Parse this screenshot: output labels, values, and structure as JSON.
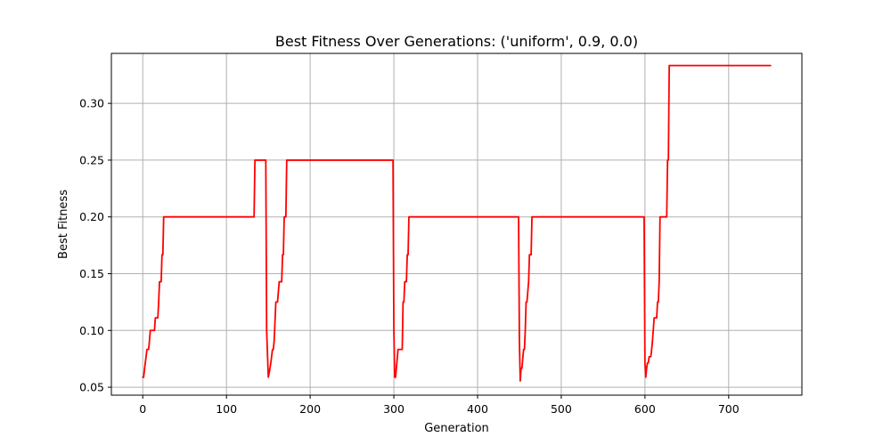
{
  "chart_data": {
    "type": "line",
    "title": "Best Fitness Over Generations: ('uniform', 0.9, 0.0)",
    "xlabel": "Generation",
    "ylabel": "Best Fitness",
    "xlim": [
      -37.5,
      787.5
    ],
    "ylim": [
      0.043,
      0.344
    ],
    "xticks": [
      0,
      100,
      200,
      300,
      400,
      500,
      600,
      700
    ],
    "yticks": [
      0.05,
      0.1,
      0.15,
      0.2,
      0.25,
      0.3
    ],
    "ytick_labels": [
      "0.05",
      "0.10",
      "0.15",
      "0.20",
      "0.25",
      "0.30"
    ],
    "grid": true,
    "series": [
      {
        "color": "#ff0000",
        "x": [
          0,
          1,
          3,
          4,
          5,
          6,
          7,
          8,
          9,
          10,
          11,
          12,
          13,
          14,
          15,
          16,
          17,
          18,
          19,
          20,
          21,
          22,
          23,
          24,
          25,
          133,
          134,
          135,
          147,
          148,
          150,
          151,
          152,
          153,
          155,
          156,
          157,
          159,
          160,
          161,
          163,
          165,
          166,
          167,
          168,
          169,
          170,
          171,
          172,
          173,
          174,
          299,
          300,
          301,
          302,
          303,
          305,
          306,
          307,
          310,
          311,
          312,
          313,
          314,
          315,
          316,
          317,
          318,
          319,
          320,
          321,
          449,
          450,
          451,
          452,
          453,
          455,
          456,
          457,
          458,
          459,
          461,
          462,
          463,
          464,
          465,
          466,
          467,
          468,
          599,
          600,
          601,
          602,
          603,
          604,
          605,
          606,
          607,
          608,
          609,
          611,
          612,
          614,
          615,
          616,
          617,
          618,
          619,
          620,
          621,
          626,
          627,
          628,
          629,
          630,
          631,
          750
        ],
        "y": [
          0.0588,
          0.0588,
          0.0714,
          0.0769,
          0.0833,
          0.0833,
          0.0833,
          0.0909,
          0.1,
          0.1,
          0.1,
          0.1,
          0.1,
          0.1,
          0.1111,
          0.1111,
          0.1111,
          0.1111,
          0.125,
          0.1429,
          0.1429,
          0.1429,
          0.1667,
          0.1667,
          0.2,
          0.2,
          0.25,
          0.25,
          0.25,
          0.1,
          0.0588,
          0.0625,
          0.0667,
          0.0714,
          0.0833,
          0.0833,
          0.0909,
          0.125,
          0.125,
          0.125,
          0.1429,
          0.1429,
          0.1429,
          0.1667,
          0.1667,
          0.2,
          0.2,
          0.2,
          0.25,
          0.25,
          0.25,
          0.25,
          0.1,
          0.0588,
          0.0588,
          0.0667,
          0.0833,
          0.0833,
          0.0833,
          0.0833,
          0.125,
          0.125,
          0.1429,
          0.1429,
          0.1429,
          0.1667,
          0.1667,
          0.2,
          0.2,
          0.2,
          0.2,
          0.2,
          0.0909,
          0.0556,
          0.0667,
          0.0667,
          0.0833,
          0.0833,
          0.1,
          0.125,
          0.125,
          0.1429,
          0.1667,
          0.1667,
          0.1667,
          0.2,
          0.2,
          0.2,
          0.2,
          0.2,
          0.0714,
          0.0588,
          0.0667,
          0.0714,
          0.0714,
          0.0769,
          0.0769,
          0.0769,
          0.0833,
          0.0909,
          0.1111,
          0.1111,
          0.1111,
          0.125,
          0.125,
          0.1429,
          0.2,
          0.2,
          0.2,
          0.2,
          0.2,
          0.25,
          0.25,
          0.3333,
          0.3333,
          0.3333,
          0.3333
        ]
      }
    ]
  }
}
